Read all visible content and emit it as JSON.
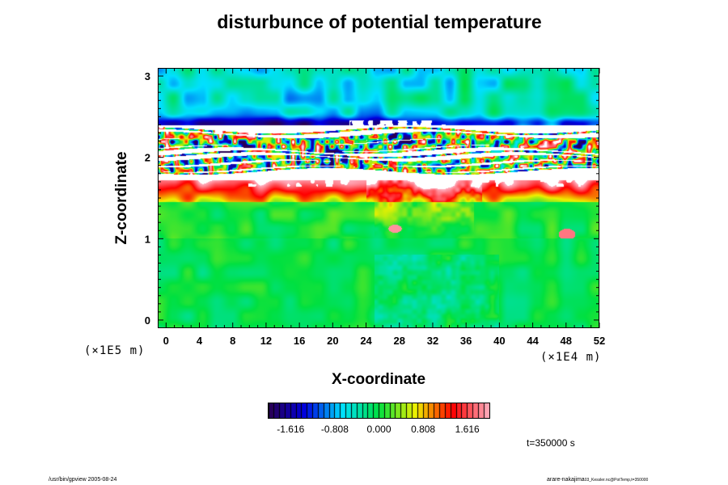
{
  "chart_data": {
    "type": "heatmap",
    "title": "disturbunce of potential temperature",
    "xlabel": "X-coordinate",
    "ylabel": "Z-coordinate",
    "x_unit": "(×1E4 m)",
    "y_unit": "(×1E5 m)",
    "xlim": [
      -1,
      52
    ],
    "ylim": [
      -0.1,
      3.1
    ],
    "x_ticks": [
      "0",
      "4",
      "8",
      "12",
      "16",
      "20",
      "24",
      "28",
      "32",
      "36",
      "40",
      "44",
      "48",
      "52"
    ],
    "y_ticks": [
      "0",
      "1",
      "2",
      "3"
    ],
    "colorbar": {
      "range": [
        -2.02,
        2.02
      ],
      "tick_labels": [
        "-1.616",
        "-0.808",
        "0.000",
        "0.808",
        "1.616"
      ],
      "colors": [
        "#2a0050",
        "#0000e0",
        "#00e0ff",
        "#00e040",
        "#f0f000",
        "#ff0000",
        "#ffb0c0"
      ]
    },
    "field_bands": [
      {
        "z": [
          2.4,
          3.1
        ],
        "description": "cyan-blue cold layer",
        "level": -0.8
      },
      {
        "z": [
          1.8,
          2.4
        ],
        "description": "saturated white layers with colored streaks",
        "level": 2.5
      },
      {
        "z": [
          1.5,
          1.7
        ],
        "description": "red-yellow warm layer",
        "level": 1.2
      },
      {
        "z": [
          -0.1,
          1.5
        ],
        "description": "green neutral",
        "level": 0.0
      }
    ]
  },
  "time_label": "t=350000 s",
  "footer": {
    "left": "/usr/bin/gpview 2005-08-24",
    "right": "arare-nakajima",
    "right_small": "03_Kessler.nc@PotTemp,t=350000"
  }
}
